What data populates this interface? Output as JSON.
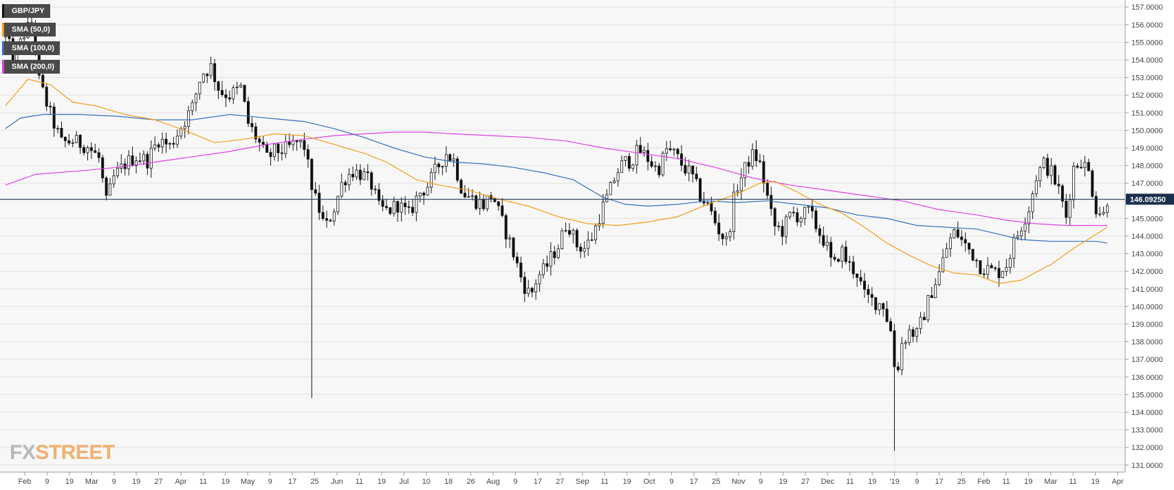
{
  "chart_data": {
    "type": "candlestick",
    "instrument": "GBP/JPY",
    "last_price_label": "146.09250",
    "last_price": 146.0925,
    "ylim": [
      130.6,
      157.4
    ],
    "y_ticks": [
      "131.0000",
      "132.0000",
      "133.0000",
      "134.0000",
      "135.0000",
      "136.0000",
      "137.0000",
      "138.0000",
      "139.0000",
      "140.0000",
      "141.0000",
      "142.0000",
      "143.0000",
      "144.0000",
      "145.0000",
      "146.0000",
      "147.0000",
      "148.0000",
      "149.0000",
      "150.0000",
      "151.0000",
      "152.0000",
      "153.0000",
      "154.0000",
      "155.0000",
      "156.0000",
      "157.0000"
    ],
    "x_tick_labels": [
      "Feb",
      "9",
      "19",
      "Mar",
      "9",
      "19",
      "27",
      "Apr",
      "11",
      "19",
      "May",
      "9",
      "17",
      "25",
      "Jun",
      "11",
      "19",
      "Jul",
      "10",
      "18",
      "26",
      "Aug",
      "9",
      "17",
      "27",
      "Sep",
      "11",
      "19",
      "Oct",
      "9",
      "17",
      "25",
      "Nov",
      "9",
      "19",
      "27",
      "Dec",
      "11",
      "19",
      "'19",
      "9",
      "17",
      "25",
      "Feb",
      "11",
      "19",
      "Mar",
      "11",
      "19",
      "Apr"
    ],
    "grid": true,
    "legend_position": "top-left",
    "legend": [
      {
        "label": "GBP/JPY",
        "color": "#111111"
      },
      {
        "label": "SMA (50,0)",
        "color": "#f39c12"
      },
      {
        "label": "SMA (100,0)",
        "color": "#2f6fbf"
      },
      {
        "label": "SMA (200,0)",
        "color": "#e23de8"
      }
    ],
    "sma50": [
      [
        0,
        151.4
      ],
      [
        30,
        152.9
      ],
      [
        60,
        152.6
      ],
      [
        90,
        151.6
      ],
      [
        120,
        151.4
      ],
      [
        160,
        150.9
      ],
      [
        200,
        150.6
      ],
      [
        240,
        150.0
      ],
      [
        280,
        149.3
      ],
      [
        320,
        149.5
      ],
      [
        360,
        149.8
      ],
      [
        400,
        149.7
      ],
      [
        440,
        149.2
      ],
      [
        480,
        148.7
      ],
      [
        510,
        148.2
      ],
      [
        550,
        147.2
      ],
      [
        580,
        146.9
      ],
      [
        620,
        146.6
      ],
      [
        660,
        146.1
      ],
      [
        700,
        145.7
      ],
      [
        740,
        145.1
      ],
      [
        780,
        144.7
      ],
      [
        820,
        144.6
      ],
      [
        860,
        144.8
      ],
      [
        900,
        145.1
      ],
      [
        940,
        145.8
      ],
      [
        980,
        146.4
      ],
      [
        1010,
        147.0
      ],
      [
        1030,
        147.1
      ],
      [
        1060,
        146.5
      ],
      [
        1090,
        145.8
      ],
      [
        1120,
        145.3
      ],
      [
        1150,
        144.5
      ],
      [
        1180,
        143.6
      ],
      [
        1210,
        142.9
      ],
      [
        1240,
        142.3
      ],
      [
        1270,
        141.9
      ],
      [
        1300,
        141.8
      ],
      [
        1330,
        141.3
      ],
      [
        1360,
        141.5
      ],
      [
        1400,
        142.4
      ],
      [
        1430,
        143.3
      ],
      [
        1460,
        144.1
      ],
      [
        1475,
        144.5
      ]
    ],
    "sma100": [
      [
        0,
        150.1
      ],
      [
        20,
        150.7
      ],
      [
        50,
        150.9
      ],
      [
        100,
        150.9
      ],
      [
        150,
        150.8
      ],
      [
        200,
        150.6
      ],
      [
        250,
        150.6
      ],
      [
        300,
        150.9
      ],
      [
        350,
        150.7
      ],
      [
        400,
        150.5
      ],
      [
        440,
        150.1
      ],
      [
        480,
        149.6
      ],
      [
        520,
        149.0
      ],
      [
        560,
        148.5
      ],
      [
        600,
        148.2
      ],
      [
        640,
        148.1
      ],
      [
        680,
        147.9
      ],
      [
        720,
        147.6
      ],
      [
        760,
        147.2
      ],
      [
        800,
        146.2
      ],
      [
        830,
        145.8
      ],
      [
        860,
        145.7
      ],
      [
        900,
        145.8
      ],
      [
        940,
        146.0
      ],
      [
        980,
        145.9
      ],
      [
        1020,
        146.0
      ],
      [
        1060,
        145.8
      ],
      [
        1100,
        145.6
      ],
      [
        1140,
        145.2
      ],
      [
        1180,
        145.0
      ],
      [
        1220,
        144.6
      ],
      [
        1260,
        144.5
      ],
      [
        1300,
        144.4
      ],
      [
        1330,
        144.1
      ],
      [
        1360,
        143.8
      ],
      [
        1400,
        143.7
      ],
      [
        1430,
        143.7
      ],
      [
        1460,
        143.7
      ],
      [
        1475,
        143.6
      ]
    ],
    "sma200": [
      [
        0,
        146.9
      ],
      [
        40,
        147.5
      ],
      [
        100,
        147.7
      ],
      [
        150,
        147.9
      ],
      [
        200,
        148.2
      ],
      [
        250,
        148.5
      ],
      [
        300,
        148.8
      ],
      [
        350,
        149.2
      ],
      [
        400,
        149.5
      ],
      [
        440,
        149.7
      ],
      [
        480,
        149.8
      ],
      [
        520,
        149.9
      ],
      [
        560,
        149.9
      ],
      [
        600,
        149.8
      ],
      [
        650,
        149.7
      ],
      [
        700,
        149.6
      ],
      [
        750,
        149.4
      ],
      [
        800,
        149.0
      ],
      [
        850,
        148.7
      ],
      [
        900,
        148.4
      ],
      [
        950,
        147.9
      ],
      [
        1000,
        147.3
      ],
      [
        1050,
        146.9
      ],
      [
        1100,
        146.6
      ],
      [
        1150,
        146.3
      ],
      [
        1200,
        146.0
      ],
      [
        1250,
        145.5
      ],
      [
        1300,
        145.2
      ],
      [
        1340,
        144.9
      ],
      [
        1380,
        144.7
      ],
      [
        1420,
        144.6
      ],
      [
        1460,
        144.6
      ],
      [
        1475,
        144.6
      ]
    ],
    "price_path": [
      [
        0,
        155.3
      ],
      [
        12,
        154.0
      ],
      [
        25,
        155.5
      ],
      [
        37,
        156.2
      ],
      [
        45,
        152.8
      ],
      [
        60,
        150.9
      ],
      [
        75,
        149.3
      ],
      [
        90,
        149.4
      ],
      [
        110,
        149.1
      ],
      [
        125,
        148.4
      ],
      [
        135,
        145.9
      ],
      [
        145,
        147.3
      ],
      [
        160,
        148.1
      ],
      [
        175,
        148.5
      ],
      [
        190,
        148.3
      ],
      [
        205,
        149.5
      ],
      [
        220,
        149.1
      ],
      [
        235,
        150.2
      ],
      [
        250,
        151.3
      ],
      [
        262,
        153.2
      ],
      [
        275,
        153.6
      ],
      [
        287,
        152.2
      ],
      [
        300,
        152.0
      ],
      [
        315,
        152.4
      ],
      [
        325,
        150.4
      ],
      [
        337,
        149.5
      ],
      [
        350,
        148.4
      ],
      [
        360,
        148.8
      ],
      [
        375,
        148.9
      ],
      [
        390,
        149.3
      ],
      [
        400,
        149.1
      ],
      [
        407,
        147.5
      ],
      [
        413,
        146.3
      ],
      [
        420,
        145.5
      ],
      [
        428,
        144.4
      ],
      [
        440,
        145.6
      ],
      [
        452,
        147.2
      ],
      [
        465,
        147.7
      ],
      [
        478,
        147.5
      ],
      [
        490,
        146.9
      ],
      [
        500,
        145.6
      ],
      [
        512,
        145.4
      ],
      [
        525,
        145.8
      ],
      [
        540,
        145.2
      ],
      [
        553,
        146.4
      ],
      [
        566,
        146.9
      ],
      [
        578,
        147.9
      ],
      [
        590,
        148.7
      ],
      [
        600,
        148.3
      ],
      [
        612,
        146.5
      ],
      [
        625,
        146.1
      ],
      [
        640,
        145.8
      ],
      [
        652,
        146.4
      ],
      [
        662,
        145.1
      ],
      [
        673,
        143.9
      ],
      [
        683,
        142.6
      ],
      [
        693,
        141.3
      ],
      [
        703,
        140.6
      ],
      [
        712,
        141.7
      ],
      [
        722,
        142.1
      ],
      [
        732,
        142.9
      ],
      [
        742,
        143.6
      ],
      [
        752,
        144.9
      ],
      [
        764,
        143.5
      ],
      [
        776,
        143.3
      ],
      [
        787,
        144.1
      ],
      [
        797,
        145.4
      ],
      [
        808,
        146.4
      ],
      [
        818,
        147.6
      ],
      [
        828,
        148.2
      ],
      [
        838,
        148.3
      ],
      [
        848,
        148.9
      ],
      [
        860,
        148.4
      ],
      [
        873,
        147.7
      ],
      [
        885,
        148.9
      ],
      [
        897,
        148.6
      ],
      [
        908,
        147.9
      ],
      [
        918,
        147.5
      ],
      [
        930,
        146.3
      ],
      [
        942,
        145.6
      ],
      [
        954,
        144.4
      ],
      [
        966,
        143.6
      ],
      [
        977,
        146.6
      ],
      [
        988,
        147.6
      ],
      [
        998,
        148.6
      ],
      [
        1008,
        148.4
      ],
      [
        1018,
        146.6
      ],
      [
        1028,
        144.6
      ],
      [
        1040,
        144.3
      ],
      [
        1052,
        145.3
      ],
      [
        1064,
        145.1
      ],
      [
        1076,
        145.4
      ],
      [
        1088,
        144.3
      ],
      [
        1098,
        143.6
      ],
      [
        1108,
        142.1
      ],
      [
        1118,
        143.3
      ],
      [
        1128,
        142.4
      ],
      [
        1140,
        141.9
      ],
      [
        1150,
        140.6
      ],
      [
        1162,
        140.3
      ],
      [
        1175,
        140.1
      ],
      [
        1185,
        138.6
      ],
      [
        1192,
        135.9
      ],
      [
        1200,
        137.9
      ],
      [
        1210,
        138.6
      ],
      [
        1220,
        138.4
      ],
      [
        1230,
        139.6
      ],
      [
        1240,
        140.9
      ],
      [
        1250,
        141.9
      ],
      [
        1262,
        143.6
      ],
      [
        1272,
        144.3
      ],
      [
        1282,
        143.6
      ],
      [
        1293,
        143.1
      ],
      [
        1305,
        142.3
      ],
      [
        1316,
        142.1
      ],
      [
        1328,
        141.9
      ],
      [
        1340,
        142.4
      ],
      [
        1350,
        143.6
      ],
      [
        1360,
        144.6
      ],
      [
        1370,
        145.6
      ],
      [
        1380,
        147.4
      ],
      [
        1390,
        148.1
      ],
      [
        1400,
        147.6
      ],
      [
        1410,
        146.6
      ],
      [
        1420,
        145.1
      ],
      [
        1430,
        147.9
      ],
      [
        1440,
        148.3
      ],
      [
        1450,
        147.6
      ],
      [
        1460,
        145.6
      ],
      [
        1470,
        145.2
      ],
      [
        1475,
        146.1
      ]
    ],
    "spikes": [
      {
        "x": 411,
        "low": 134.8
      },
      {
        "x": 1192,
        "low": 131.8
      }
    ]
  }
}
